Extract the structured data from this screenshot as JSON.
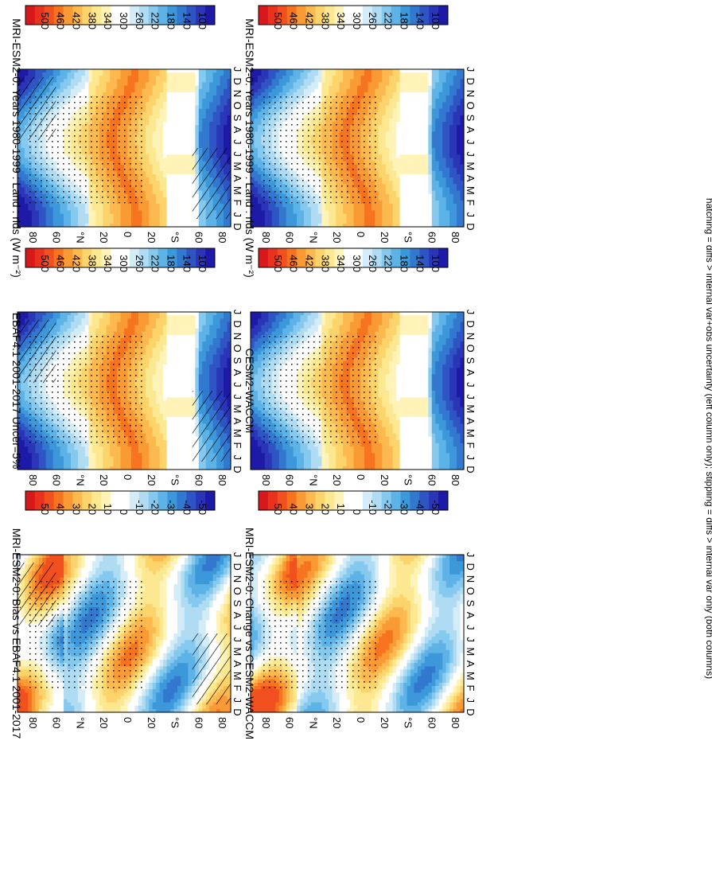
{
  "figure": {
    "footnote": "hatching = diffs > internal var+obs uncertainty (left column only); stippling = diffs > internal var only (both columns)"
  },
  "colorbars": {
    "absolute": {
      "ticks": [
        "500",
        "460",
        "420",
        "380",
        "340",
        "300",
        "260",
        "220",
        "180",
        "140",
        "100"
      ],
      "colors": [
        "#d7191c",
        "#e8321e",
        "#f1511f",
        "#f6741f",
        "#fa9a35",
        "#fcb94f",
        "#fdd46c",
        "#fde892",
        "#fff3b8",
        "#ffffff",
        "#ffffff",
        "#d3ecf8",
        "#b0dcf3",
        "#86c9ee",
        "#5db2e6",
        "#3d98da",
        "#3278cf",
        "#2f55c4",
        "#2a35b8",
        "#1c1aa6"
      ]
    },
    "difference": {
      "ticks": [
        "50",
        "40",
        "30",
        "20",
        "10",
        "0",
        "-10",
        "-20",
        "-30",
        "-40",
        "-50"
      ],
      "colors": [
        "#d7191c",
        "#e8321e",
        "#f1511f",
        "#f6741f",
        "#fa9a35",
        "#fcb94f",
        "#fdd46c",
        "#fde892",
        "#fff3b8",
        "#ffffff",
        "#ffffff",
        "#d3ecf8",
        "#b0dcf3",
        "#86c9ee",
        "#5db2e6",
        "#3d98da",
        "#3278cf",
        "#2f55c4",
        "#2a35b8",
        "#1c1aa6"
      ]
    }
  },
  "chart_data": [
    {
      "type": "heatmap",
      "title": "MRI-ESM2-0: Years 1980-1999 : Land : rlds (W m⁻²)",
      "x": [
        "D",
        "J",
        "F",
        "M",
        "A",
        "M",
        "J",
        "J",
        "A",
        "S",
        "O",
        "N",
        "D",
        "J"
      ],
      "y_ticks": [
        "80",
        "60",
        "°N",
        "20",
        "0",
        "20",
        "°S",
        "60",
        "80"
      ],
      "field": "abs",
      "hatching": true,
      "stippling": true,
      "colorbar": "absolute"
    },
    {
      "type": "heatmap",
      "title": "MRI-ESM2-0: Years 1980-1999 : Land : rlds (W m⁻²)",
      "x": [
        "D",
        "J",
        "F",
        "M",
        "A",
        "M",
        "J",
        "J",
        "A",
        "S",
        "O",
        "N",
        "D",
        "J"
      ],
      "y_ticks": [
        "80",
        "60",
        "°N",
        "20",
        "0",
        "20",
        "°S",
        "60",
        "80"
      ],
      "field": "abs",
      "hatching": false,
      "stippling": true,
      "colorbar": "absolute"
    },
    {
      "type": "heatmap",
      "title": "EBAF4.1 2001-2017 Uncer=5%",
      "x": [
        "D",
        "J",
        "F",
        "M",
        "A",
        "M",
        "J",
        "J",
        "A",
        "S",
        "O",
        "N",
        "D",
        "J"
      ],
      "y_ticks": [
        "80",
        "60",
        "°N",
        "20",
        "0",
        "20",
        "°S",
        "60",
        "80"
      ],
      "field": "abs",
      "hatching": true,
      "stippling": true,
      "colorbar": "absolute"
    },
    {
      "type": "heatmap",
      "title": "CESM2-WACCM",
      "x": [
        "D",
        "J",
        "F",
        "M",
        "A",
        "M",
        "J",
        "J",
        "A",
        "S",
        "O",
        "N",
        "D",
        "J"
      ],
      "y_ticks": [
        "80",
        "60",
        "°N",
        "20",
        "0",
        "20",
        "°S",
        "60",
        "80"
      ],
      "field": "abs",
      "hatching": false,
      "stippling": true,
      "colorbar": "absolute"
    },
    {
      "type": "heatmap",
      "title": "MRI-ESM2-0: Bias vs EBAF4.1 2001-2017",
      "x": [
        "D",
        "J",
        "F",
        "M",
        "A",
        "M",
        "J",
        "J",
        "A",
        "S",
        "O",
        "N",
        "D",
        "J"
      ],
      "y_ticks": [
        "80",
        "60",
        "°N",
        "20",
        "0",
        "20",
        "°S",
        "60",
        "80"
      ],
      "field": "diff",
      "hatching": true,
      "stippling": true,
      "colorbar": "difference"
    },
    {
      "type": "heatmap",
      "title": "MRI-ESM2-0: Change vs CESM2-WACCM",
      "x": [
        "D",
        "J",
        "F",
        "M",
        "A",
        "M",
        "J",
        "J",
        "A",
        "S",
        "O",
        "N",
        "D",
        "J"
      ],
      "y_ticks": [
        "80",
        "60",
        "°N",
        "20",
        "0",
        "20",
        "°S",
        "60",
        "80"
      ],
      "field": "diff",
      "hatching": false,
      "stippling": true,
      "colorbar": "difference"
    }
  ]
}
